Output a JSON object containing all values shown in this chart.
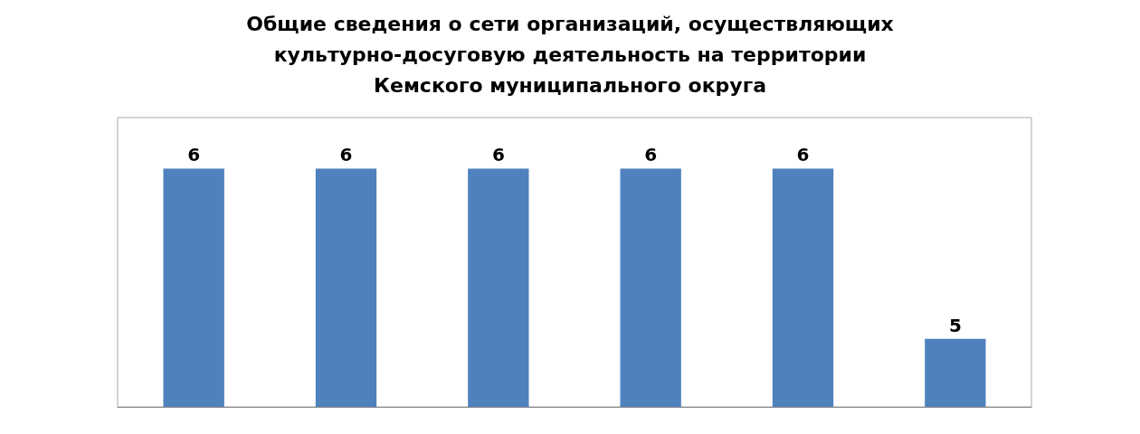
{
  "chart_data": {
    "type": "bar",
    "title": "Общие сведения о сети организаций, осуществляющих\nкультурно-досуговую деятельность на территории\nКемского муниципального округа",
    "categories": [
      null,
      null,
      null,
      null,
      null,
      null
    ],
    "values": [
      6,
      6,
      6,
      6,
      6,
      5
    ],
    "color": "#4f81bd",
    "ylim": [
      4.6,
      6.3
    ],
    "data_labels": true,
    "tick_labels": false
  }
}
